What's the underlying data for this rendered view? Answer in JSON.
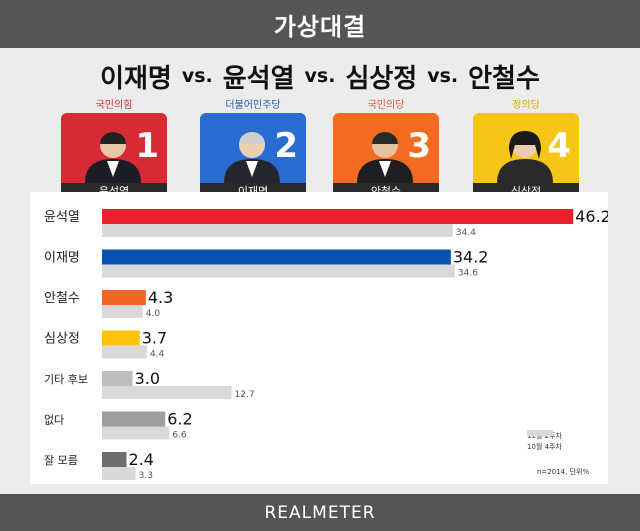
{
  "header": {
    "title": "가상대결"
  },
  "matchup": {
    "names": [
      "이재명",
      "윤석열",
      "심상정",
      "안철수"
    ],
    "vs": "vs."
  },
  "candidates": [
    {
      "party": "국민의힘",
      "number": "1",
      "name": "윤석열",
      "color": "#d62a34",
      "partyColor": "#d62a34"
    },
    {
      "party": "더불어민주당",
      "number": "2",
      "name": "이재명",
      "color": "#2a6bd1",
      "partyColor": "#1f5bb5"
    },
    {
      "party": "국민의당",
      "number": "3",
      "name": "안철수",
      "color": "#f26b21",
      "partyColor": "#e0552a"
    },
    {
      "party": "정의당",
      "number": "4",
      "name": "심상정",
      "color": "#f5c518",
      "partyColor": "#e0a800"
    }
  ],
  "chart_data": {
    "type": "bar",
    "orientation": "horizontal",
    "categories": [
      "윤석열",
      "이재명",
      "안철수",
      "심상정",
      "기타 후보",
      "없다",
      "잘 모름"
    ],
    "series": [
      {
        "name": "11월 2주차",
        "values": [
          46.2,
          34.2,
          4.3,
          3.7,
          3.0,
          6.2,
          2.4
        ],
        "colors": [
          "#e8212f",
          "#0a52b0",
          "#f26522",
          "#ffc20e",
          "#bdbdbd",
          "#9e9e9e",
          "#6d6d6d"
        ]
      },
      {
        "name": "10월 4주차",
        "values": [
          34.4,
          34.6,
          4.0,
          4.4,
          12.7,
          6.6,
          3.3
        ],
        "color": "#d9d9d9"
      }
    ],
    "legend_swatch_colors": [
      "#e8212f",
      "#0a52b0",
      "#f26522",
      "#ffc20e"
    ],
    "xlim": [
      0,
      50
    ],
    "value_labels": true,
    "legend_position": "bottom-right"
  },
  "footnote": "n=2014, 단위%",
  "footer": {
    "brand": "REALMETER"
  }
}
